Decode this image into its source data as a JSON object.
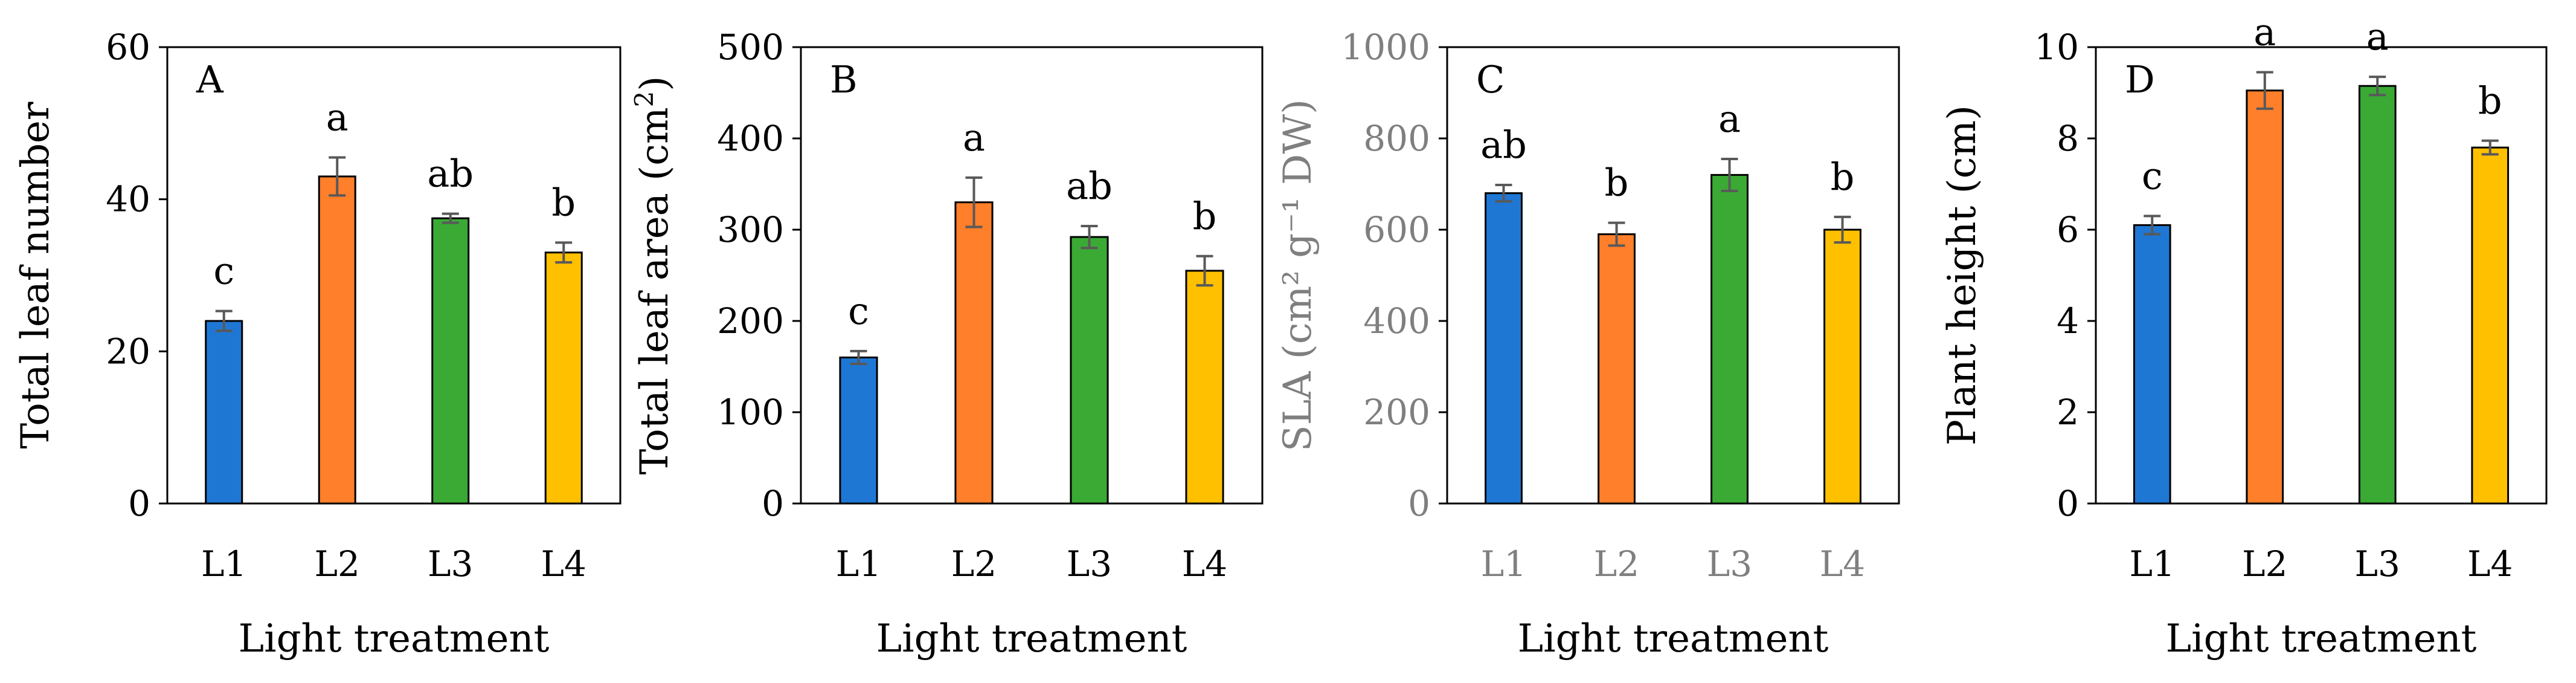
{
  "chart_data": [
    {
      "type": "bar",
      "panel_label": "A",
      "categories": [
        "L1",
        "L2",
        "L3",
        "L4"
      ],
      "values": [
        24,
        43,
        37.5,
        33
      ],
      "errors": [
        1.3,
        2.5,
        0.6,
        1.3
      ],
      "significance": [
        "c",
        "a",
        "ab",
        "b"
      ],
      "colors": [
        "#1f77d4",
        "#ff7f2a",
        "#3aaa35",
        "#ffc000"
      ],
      "ylabel": "Total leaf number",
      "ylabel_sup": "",
      "ylabel_suffix": "",
      "xlabel": "Light treatment",
      "ylim": [
        0,
        60
      ],
      "yticks": [
        "0",
        "20",
        "40",
        "60"
      ],
      "text_color": "#000000"
    },
    {
      "type": "bar",
      "panel_label": "B",
      "categories": [
        "L1",
        "L2",
        "L3",
        "L4"
      ],
      "values": [
        160,
        330,
        292,
        255
      ],
      "errors": [
        7,
        27,
        12,
        16
      ],
      "significance": [
        "c",
        "a",
        "ab",
        "b"
      ],
      "colors": [
        "#1f77d4",
        "#ff7f2a",
        "#3aaa35",
        "#ffc000"
      ],
      "ylabel": "Total leaf area (cm",
      "ylabel_sup": "2",
      "ylabel_suffix": ")",
      "xlabel": "Light treatment",
      "ylim": [
        0,
        500
      ],
      "yticks": [
        "0",
        "100",
        "200",
        "300",
        "400",
        "500"
      ],
      "text_color": "#000000"
    },
    {
      "type": "bar",
      "panel_label": "C",
      "categories": [
        "L1",
        "L2",
        "L3",
        "L4"
      ],
      "values": [
        680,
        590,
        720,
        600
      ],
      "errors": [
        18,
        25,
        35,
        28
      ],
      "significance": [
        "ab",
        "b",
        "a",
        "b"
      ],
      "colors": [
        "#1f77d4",
        "#ff7f2a",
        "#3aaa35",
        "#ffc000"
      ],
      "ylabel": "SLA  (cm² g⁻¹ DW)",
      "ylabel_sup": "",
      "ylabel_suffix": "",
      "xlabel": "Light treatment",
      "ylim": [
        0,
        1000
      ],
      "yticks": [
        "0",
        "200",
        "400",
        "600",
        "800",
        "1000"
      ],
      "text_color": "#7f7f7f"
    },
    {
      "type": "bar",
      "panel_label": "D",
      "categories": [
        "L1",
        "L2",
        "L3",
        "L4"
      ],
      "values": [
        6.1,
        9.05,
        9.15,
        7.8
      ],
      "errors": [
        0.2,
        0.4,
        0.2,
        0.15
      ],
      "significance": [
        "c",
        "a",
        "a",
        "b"
      ],
      "colors": [
        "#1f77d4",
        "#ff7f2a",
        "#3aaa35",
        "#ffc000"
      ],
      "ylabel": "Plant  height (cm)",
      "ylabel_sup": "",
      "ylabel_suffix": "",
      "xlabel": "Light treatment",
      "ylim": [
        0,
        10
      ],
      "yticks": [
        "0",
        "2",
        "4",
        "6",
        "8",
        "10"
      ],
      "text_color": "#000000"
    }
  ]
}
